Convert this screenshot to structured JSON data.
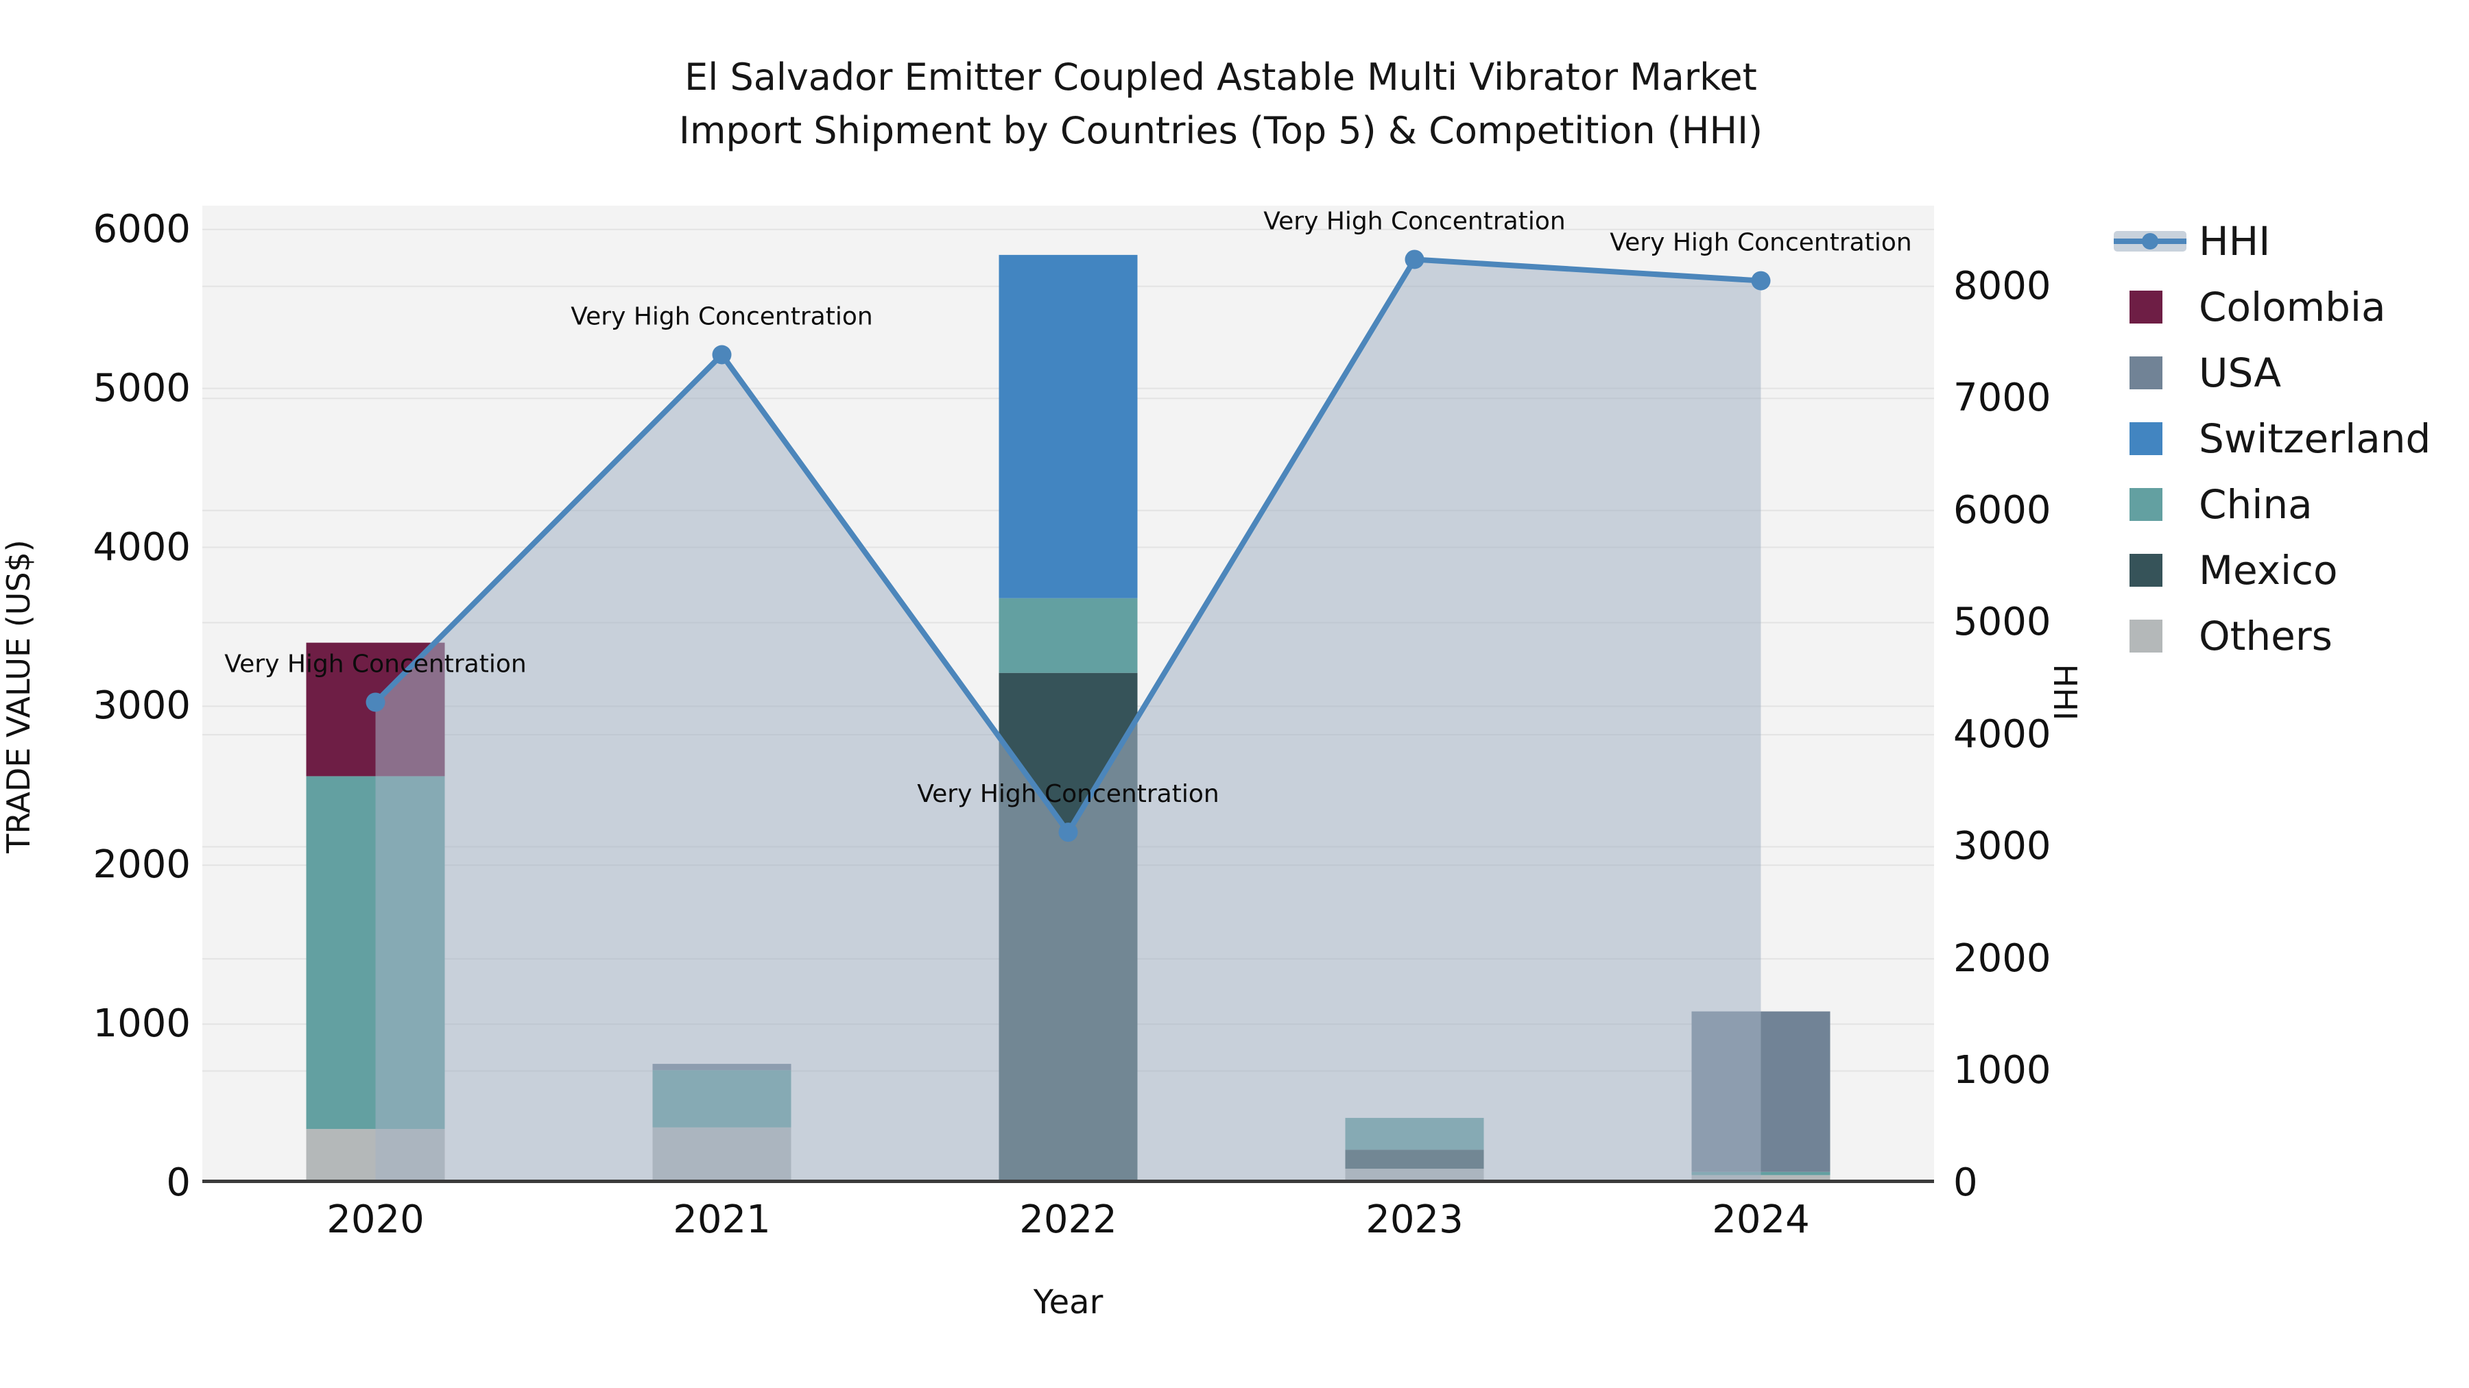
{
  "title": {
    "line1": "El Salvador Emitter Coupled Astable Multi Vibrator Market",
    "line2": "Import Shipment by Countries (Top 5) & Competition (HHI)"
  },
  "axis_titles": {
    "x": "Year",
    "y_left": "TRADE VALUE (US$)",
    "y_right": "HHI"
  },
  "legend": {
    "position": "right",
    "items": [
      {
        "label": "HHI",
        "type": "line-with-area",
        "color": "#4C86BB",
        "band_color": "#C9D2DC"
      },
      {
        "label": "Colombia",
        "type": "square",
        "color": "#6E1E45"
      },
      {
        "label": "USA",
        "type": "square",
        "color": "#718396"
      },
      {
        "label": "Switzerland",
        "type": "square",
        "color": "#4285C1"
      },
      {
        "label": "China",
        "type": "square",
        "color": "#63A0A1"
      },
      {
        "label": "Mexico",
        "type": "square",
        "color": "#365359"
      },
      {
        "label": "Others",
        "type": "square",
        "color": "#B4B8B9"
      }
    ]
  },
  "colors": {
    "figure_bg": "#FFFFFF",
    "plot_bg": "#F3F3F3",
    "grid": "#E3E3E3",
    "axis_line": "#3B3B3B",
    "text": "#111111",
    "hhi_line": "#4C86BB",
    "hhi_area": "#A4B2C4"
  },
  "chart_data": {
    "type": "bar",
    "subtype": "stacked-bars-with-line-on-secondary-axis-and-area-fill",
    "title": "El Salvador Emitter Coupled Astable Multi Vibrator Market Import Shipment by Countries (Top 5) & Competition (HHI)",
    "categories": [
      "2020",
      "2021",
      "2022",
      "2023",
      "2024"
    ],
    "xlabel": "Year",
    "ylabel_left": "TRADE VALUE (US$)",
    "ylabel_right": "HHI",
    "grid": true,
    "legend_position": "right",
    "series": [
      {
        "name": "Colombia",
        "color": "#6E1E45",
        "values": [
          840,
          0,
          0,
          0,
          0
        ]
      },
      {
        "name": "USA",
        "color": "#718396",
        "values": [
          0,
          40,
          0,
          0,
          1010
        ]
      },
      {
        "name": "Switzerland",
        "color": "#4285C1",
        "values": [
          0,
          0,
          2160,
          0,
          0
        ]
      },
      {
        "name": "China",
        "color": "#63A0A1",
        "values": [
          2220,
          360,
          470,
          200,
          20
        ]
      },
      {
        "name": "Mexico",
        "color": "#365359",
        "values": [
          0,
          0,
          3210,
          120,
          0
        ]
      },
      {
        "name": "Others",
        "color": "#B4B8B9",
        "values": [
          340,
          350,
          0,
          90,
          50
        ]
      }
    ],
    "stack_order": [
      [
        "Others",
        "China",
        "Colombia"
      ],
      [
        "Others",
        "China",
        "USA"
      ],
      [
        "Mexico",
        "China",
        "Switzerland"
      ],
      [
        "Others",
        "Mexico",
        "China"
      ],
      [
        "Others",
        "China",
        "USA"
      ]
    ],
    "bar_totals": [
      3400,
      750,
      5840,
      410,
      1080
    ],
    "line_series": {
      "name": "HHI",
      "axis": "right",
      "color": "#4C86BB",
      "area_color": "#A4B2C4",
      "area_opacity": 0.55,
      "values": [
        4290,
        7390,
        3130,
        8240,
        8050
      ]
    },
    "annotations": [
      {
        "category": "2020",
        "value": 4290,
        "text": "Very High Concentration"
      },
      {
        "category": "2021",
        "value": 7390,
        "text": "Very High Concentration"
      },
      {
        "category": "2022",
        "value": 3130,
        "text": "Very High Concentration"
      },
      {
        "category": "2023",
        "value": 8240,
        "text": "Very High Concentration"
      },
      {
        "category": "2024",
        "value": 8050,
        "text": "Very High Concentration"
      }
    ],
    "y_left": {
      "ticks": [
        0,
        1000,
        2000,
        3000,
        4000,
        5000,
        6000
      ],
      "range": [
        0,
        6150
      ]
    },
    "y_right": {
      "ticks": [
        0,
        1000,
        2000,
        3000,
        4000,
        5000,
        6000,
        7000,
        8000
      ],
      "range": [
        0,
        8720
      ]
    }
  },
  "layout_note": "static rendered chart image"
}
